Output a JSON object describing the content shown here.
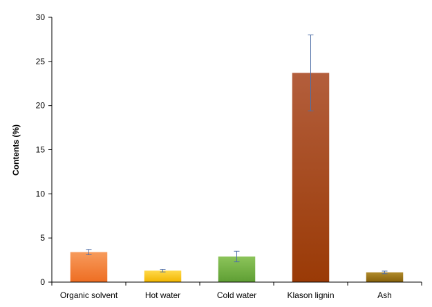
{
  "chart_data": {
    "type": "bar",
    "title": "",
    "xlabel": "",
    "ylabel": "Contents (%)",
    "ylim": [
      0,
      30
    ],
    "yticks": [
      0,
      5,
      10,
      15,
      20,
      25,
      30
    ],
    "grid": false,
    "categories": [
      "Organic solvent",
      "Hot water",
      "Cold water",
      "Klason lignin",
      "Ash"
    ],
    "values": [
      3.4,
      1.3,
      2.9,
      23.7,
      1.1
    ],
    "errors": [
      0.3,
      0.15,
      0.6,
      4.3,
      0.15
    ],
    "colors": [
      {
        "light": "#f79b5c",
        "dark": "#ee6d22"
      },
      {
        "light": "#ffd84a",
        "dark": "#f2b600"
      },
      {
        "light": "#8cc45a",
        "dark": "#5e9e33"
      },
      {
        "light": "#b35e3c",
        "dark": "#9a3a06"
      },
      {
        "light": "#b08a2c",
        "dark": "#86610a"
      }
    ],
    "error_color": "#4f6fa8"
  }
}
